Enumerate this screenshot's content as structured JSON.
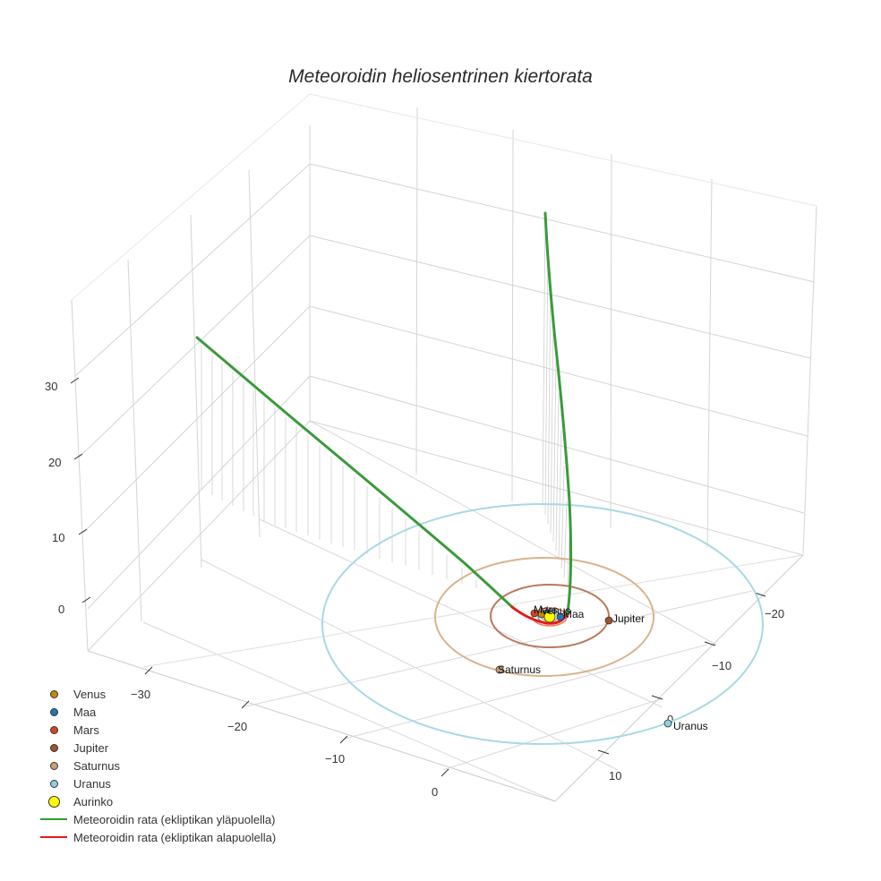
{
  "chart_data": {
    "type": "scatter3d",
    "title": "Meteoroidin heliosentrinen kiertorata",
    "axes": {
      "x": {
        "ticks": [
          -30,
          -20,
          -10,
          0
        ],
        "label": ""
      },
      "y": {
        "ticks": [
          -20,
          -10,
          0,
          10
        ],
        "label": ""
      },
      "z": {
        "ticks": [
          0,
          10,
          20,
          30
        ],
        "label": ""
      }
    },
    "grid": true,
    "legend_position": "bottom-left",
    "series": [
      {
        "name": "Venus",
        "type": "marker",
        "color": "#c8860d",
        "label": "Venus"
      },
      {
        "name": "Maa",
        "type": "marker",
        "color": "#1f77b4",
        "label": "Maa"
      },
      {
        "name": "Mars",
        "type": "marker",
        "color": "#d2461e",
        "label": "Mars"
      },
      {
        "name": "Jupiter",
        "type": "marker",
        "color": "#a0522d",
        "label": "Jupiter",
        "orbit_radius_au": 5.2
      },
      {
        "name": "Saturnus",
        "type": "marker",
        "color": "#c8a07a",
        "label": "Saturnus",
        "orbit_radius_au": 9.5
      },
      {
        "name": "Uranus",
        "type": "marker",
        "color": "#8ecfe0",
        "label": "Uranus",
        "orbit_radius_au": 19.2
      },
      {
        "name": "Aurinko",
        "type": "marker",
        "color": "#ffff00",
        "label": "Aurinko"
      },
      {
        "name": "Meteoroidin rata (ekliptikan yläpuolella)",
        "type": "line",
        "color": "#2ca02c"
      },
      {
        "name": "Meteoroidin rata (ekliptikan alapuolella)",
        "type": "line",
        "color": "#e41a1c"
      }
    ],
    "trajectory_description": "Hyperbolic-like path: one branch rising to z~33 toward x~-35, another branch rising steeply to z~40+ near the sun; dips below ecliptic near perihelion"
  },
  "title": "Meteoroidin heliosentrinen kiertorata",
  "ticks": {
    "z": [
      "30",
      "20",
      "10",
      "0"
    ],
    "x": [
      "−30",
      "−20",
      "−10",
      "0"
    ],
    "y": [
      "−20",
      "−10",
      "0",
      "10"
    ]
  },
  "labels": {
    "venus": "Venus",
    "mars": "Mars",
    "maa": "Maa",
    "jupiter": "Jupiter",
    "saturnus": "Saturnus",
    "uranus": "Uranus"
  },
  "legend": [
    {
      "label": "Venus",
      "kind": "dot",
      "color": "#c8860d"
    },
    {
      "label": "Maa",
      "kind": "dot",
      "color": "#1f77b4"
    },
    {
      "label": "Mars",
      "kind": "dot",
      "color": "#d2461e"
    },
    {
      "label": "Jupiter",
      "kind": "dot",
      "color": "#a0522d"
    },
    {
      "label": "Saturnus",
      "kind": "dot",
      "color": "#c8a07a"
    },
    {
      "label": "Uranus",
      "kind": "dot",
      "color": "#8ecfe0"
    },
    {
      "label": "Aurinko",
      "kind": "sun",
      "color": "#ffff00"
    },
    {
      "label": "Meteoroidin rata (ekliptikan yläpuolella)",
      "kind": "line",
      "color": "#2ca02c"
    },
    {
      "label": "Meteoroidin rata (ekliptikan alapuolella)",
      "kind": "line",
      "color": "#e41a1c"
    }
  ]
}
